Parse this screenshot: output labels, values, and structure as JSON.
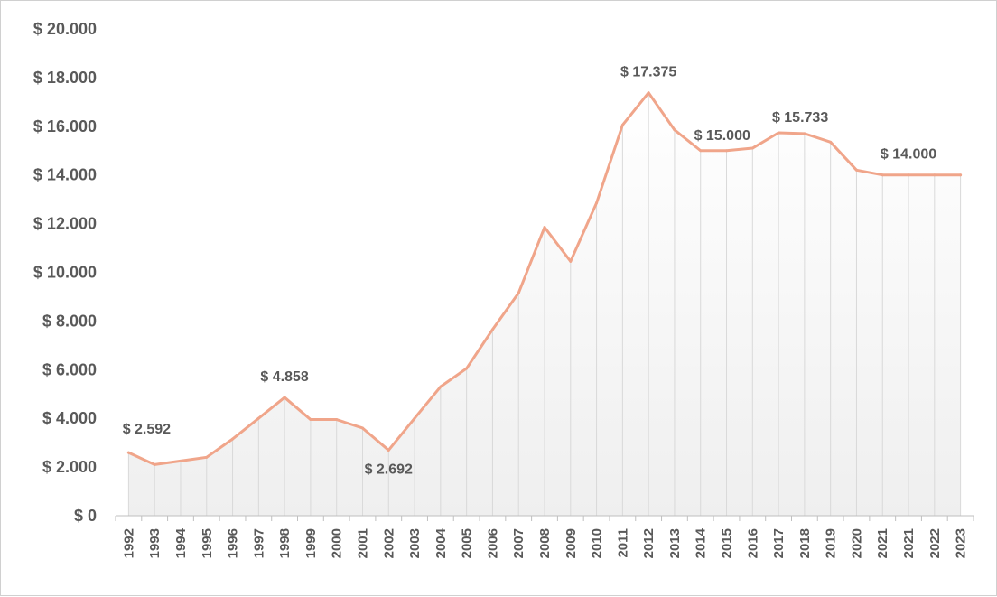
{
  "chart_data": {
    "type": "area",
    "title": "",
    "xlabel": "",
    "ylabel": "",
    "ylim": [
      0,
      20000
    ],
    "y_tick_step": 2000,
    "y_tick_labels": [
      "$ 0",
      "$ 2.000",
      "$ 4.000",
      "$ 6.000",
      "$ 8.000",
      "$ 10.000",
      "$ 12.000",
      "$ 14.000",
      "$ 16.000",
      "$ 18.000",
      "$ 20.000"
    ],
    "categories": [
      "1992",
      "1993",
      "1994",
      "1995",
      "1996",
      "1997",
      "1998",
      "1999",
      "2000",
      "2001",
      "2002",
      "2003",
      "2004",
      "2005",
      "2006",
      "2007",
      "2008",
      "2009",
      "2010",
      "2011",
      "2012",
      "2013",
      "2014",
      "2015",
      "2016",
      "2017",
      "2018",
      "2019",
      "2020",
      "2021",
      "2021",
      "2022",
      "2023"
    ],
    "series": [
      {
        "values": [
          2592,
          2100,
          2250,
          2400,
          3150,
          4000,
          4858,
          3950,
          3950,
          3600,
          2692,
          4000,
          5300,
          6050,
          7650,
          9150,
          11850,
          10450,
          12850,
          16050,
          17375,
          15850,
          15000,
          15000,
          15100,
          15733,
          15700,
          15350,
          14200,
          14000,
          14000,
          14000,
          14000
        ]
      }
    ],
    "data_labels": [
      {
        "index": 0,
        "text": "$ 2.592",
        "position": "above"
      },
      {
        "index": 6,
        "text": "$ 4.858",
        "position": "above"
      },
      {
        "index": 10,
        "text": "$ 2.692",
        "position": "below"
      },
      {
        "index": 20,
        "text": "$ 17.375",
        "position": "above"
      },
      {
        "index": 22,
        "text": "$ 15.000",
        "position": "above-right"
      },
      {
        "index": 25,
        "text": "$ 15.733",
        "position": "above-right"
      },
      {
        "index": 30,
        "text": "$ 14.000",
        "position": "above"
      }
    ],
    "colors": {
      "line": "#f0a58a",
      "drop_lines": "#d9d9d9",
      "fill_top": "#ffffff",
      "fill_bottom": "#efefef",
      "text": "#595959",
      "axis": "#bfbfbf"
    },
    "grid": false,
    "legend": "none"
  }
}
